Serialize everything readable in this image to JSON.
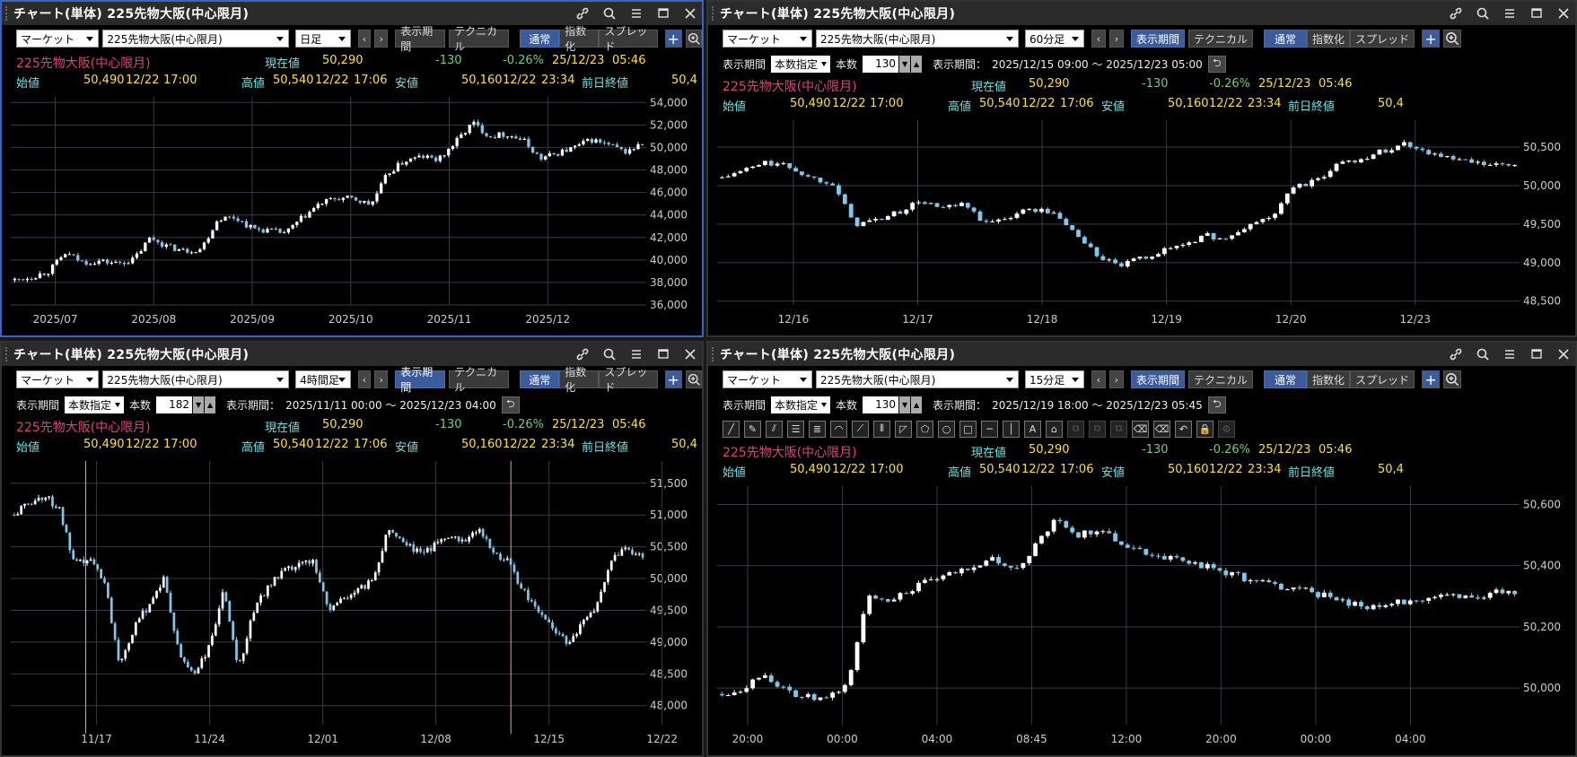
{
  "panels": [
    {
      "title": "チャート(単体) 225先物大阪(中心限月)",
      "market": "マーケット",
      "symbol": "225先物大阪(中心限月)",
      "interval": "日足",
      "btn_period": "表示期間",
      "btn_technical": "テクニカル",
      "btn_normal": "通常",
      "btn_index": "指数化",
      "btn_spread": "スプレッド",
      "quote": {
        "name": "225先物大阪(中心限月)",
        "now_label": "現在値",
        "now": "50,290",
        "change": "-130",
        "pct": "-0.26%",
        "date": "25/12/23",
        "time": "05:46",
        "open_label": "始値",
        "open": "50,490",
        "open_date": "12/22",
        "open_time": "17:00",
        "high_label": "高値",
        "high": "50,540",
        "high_date": "12/22",
        "high_time": "17:06",
        "low_label": "安値",
        "low": "50,160",
        "low_date": "12/22",
        "low_time": "23:34",
        "prev_label": "前日終値",
        "prev": "50,4"
      },
      "chart_data": {
        "type": "candlestick",
        "y_ticks": [
          "54,000",
          "52,000",
          "50,000",
          "48,000",
          "46,000",
          "44,000",
          "42,000",
          "40,000",
          "38,000",
          "36,000"
        ],
        "x_ticks": [
          "2025/07",
          "2025/08",
          "2025/09",
          "2025/10",
          "2025/11",
          "2025/12"
        ],
        "ylim": [
          36000,
          54500
        ],
        "path": [
          38200,
          38500,
          39000,
          40600,
          39800,
          39900,
          39700,
          40000,
          42000,
          41200,
          40800,
          41000,
          43700,
          43800,
          42800,
          42600,
          42400,
          43800,
          45000,
          45500,
          45400,
          44900,
          47700,
          48800,
          49200,
          48900,
          50500,
          52200,
          51000,
          51200,
          50600,
          49000,
          49500,
          50000,
          50700,
          50200,
          49600,
          50300
        ]
      }
    },
    {
      "title": "チャート(単体) 225先物大阪(中心限月)",
      "market": "マーケット",
      "symbol": "225先物大阪(中心限月)",
      "interval": "60分足",
      "btn_period": "表示期間",
      "btn_technical": "テクニカル",
      "btn_normal": "通常",
      "btn_index": "指数化",
      "btn_spread": "スプレッド",
      "period": {
        "label": "表示期間",
        "mode": "本数指定",
        "count_label": "本数",
        "count": "130",
        "range_label": "表示期間：",
        "range": "2025/12/15 09:00 ～ 2025/12/23 05:00"
      },
      "quote": {
        "name": "225先物大阪(中心限月)",
        "now_label": "現在値",
        "now": "50,290",
        "change": "-130",
        "pct": "-0.26%",
        "date": "25/12/23",
        "time": "05:46",
        "open_label": "始値",
        "open": "50,490",
        "open_date": "12/22",
        "open_time": "17:00",
        "high_label": "高値",
        "high": "50,540",
        "high_date": "12/22",
        "high_time": "17:06",
        "low_label": "安値",
        "low": "50,160",
        "low_date": "12/22",
        "low_time": "23:34",
        "prev_label": "前日終値",
        "prev": "50,4"
      },
      "chart_data": {
        "type": "candlestick",
        "y_ticks": [
          "50,500",
          "50,000",
          "49,500",
          "49,000",
          "48,500"
        ],
        "x_ticks": [
          "12/16",
          "12/17",
          "12/18",
          "12/19",
          "12/20",
          "12/23"
        ],
        "ylim": [
          48450,
          50850
        ],
        "path": [
          50100,
          50200,
          50300,
          50250,
          50100,
          50050,
          49500,
          49550,
          49650,
          49800,
          49700,
          49750,
          49500,
          49600,
          49700,
          49650,
          49400,
          49100,
          48950,
          49050,
          49150,
          49250,
          49350,
          49300,
          49500,
          49600,
          50000,
          50050,
          50300,
          50350,
          50450,
          50550,
          50450,
          50350,
          50300,
          50250,
          50280
        ]
      }
    },
    {
      "title": "チャート(単体) 225先物大阪(中心限月)",
      "market": "マーケット",
      "symbol": "225先物大阪(中心限月)",
      "interval": "4時間足",
      "btn_period": "表示期間",
      "btn_technical": "テクニカル",
      "btn_normal": "通常",
      "btn_index": "指数化",
      "btn_spread": "スプレッド",
      "period": {
        "label": "表示期間",
        "mode": "本数指定",
        "count_label": "本数",
        "count": "182",
        "range_label": "表示期間：",
        "range": "2025/11/11 00:00 ～ 2025/12/23 04:00"
      },
      "quote": {
        "name": "225先物大阪(中心限月)",
        "now_label": "現在値",
        "now": "50,290",
        "change": "-130",
        "pct": "-0.26%",
        "date": "25/12/23",
        "time": "05:46",
        "open_label": "始値",
        "open": "50,490",
        "open_date": "12/22",
        "open_time": "17:00",
        "high_label": "高値",
        "high": "50,540",
        "high_date": "12/22",
        "high_time": "17:06",
        "low_label": "安値",
        "low": "50,160",
        "low_date": "12/22",
        "low_time": "23:34",
        "prev_label": "前日終値",
        "prev": "50,4"
      },
      "chart_data": {
        "type": "candlestick",
        "y_ticks": [
          "51,500",
          "51,000",
          "50,500",
          "50,000",
          "49,500",
          "49,000",
          "48,500",
          "48,000"
        ],
        "x_ticks": [
          "11/17",
          "11/24",
          "12/01",
          "12/08",
          "12/15",
          "12/22"
        ],
        "ylim": [
          47700,
          51850
        ],
        "path": [
          51000,
          51200,
          51300,
          51100,
          50200,
          50300,
          50000,
          48700,
          49200,
          49600,
          50000,
          48800,
          48500,
          48900,
          49800,
          48600,
          49500,
          49900,
          50100,
          50200,
          50300,
          49500,
          49700,
          49800,
          50000,
          50800,
          50600,
          50400,
          50500,
          50700,
          50600,
          50800,
          50400,
          50300,
          49800,
          49500,
          49200,
          49000,
          49300,
          49600,
          50300,
          50500,
          50300
        ]
      }
    },
    {
      "title": "チャート(単体) 225先物大阪(中心限月)",
      "market": "マーケット",
      "symbol": "225先物大阪(中心限月)",
      "interval": "15分足",
      "btn_period": "表示期間",
      "btn_technical": "テクニカル",
      "btn_normal": "通常",
      "btn_index": "指数化",
      "btn_spread": "スプレッド",
      "period": {
        "label": "表示期間",
        "mode": "本数指定",
        "count_label": "本数",
        "count": "130",
        "range_label": "表示期間：",
        "range": "2025/12/19 18:00 ～ 2025/12/23 05:45"
      },
      "quote": {
        "name": "225先物大阪(中心限月)",
        "now_label": "現在値",
        "now": "50,290",
        "change": "-130",
        "pct": "-0.26%",
        "date": "25/12/23",
        "time": "05:46",
        "open_label": "始値",
        "open": "50,490",
        "open_date": "12/22",
        "open_time": "17:00",
        "high_label": "高値",
        "high": "50,540",
        "high_date": "12/22",
        "high_time": "17:06",
        "low_label": "安値",
        "low": "50,160",
        "low_date": "12/22",
        "low_time": "23:34",
        "prev_label": "前日終値",
        "prev": "50,4"
      },
      "chart_data": {
        "type": "candlestick",
        "y_ticks": [
          "50,600",
          "50,400",
          "50,200",
          "50,000"
        ],
        "x_ticks": [
          "20:00",
          "00:00",
          "04:00",
          "08:45",
          "12:00",
          "20:00",
          "00:00",
          "04:00"
        ],
        "ylim": [
          49880,
          50660
        ],
        "path": [
          49980,
          50000,
          50050,
          49990,
          49970,
          49960,
          50010,
          50300,
          50290,
          50320,
          50350,
          50370,
          50400,
          50420,
          50380,
          50460,
          50550,
          50500,
          50520,
          50480,
          50450,
          50430,
          50420,
          50400,
          50380,
          50360,
          50340,
          50330,
          50320,
          50300,
          50280,
          50260,
          50270,
          50290,
          50300,
          50300,
          50290,
          50320,
          50300
        ]
      }
    }
  ],
  "draw_tools": [
    "line",
    "pencil",
    "parallel",
    "lines3",
    "lines5",
    "arc",
    "fan",
    "vlines",
    "wedge",
    "pentagon",
    "circle",
    "rect",
    "hline",
    "vline",
    "text",
    "icon",
    "copy1",
    "copy2",
    "copy3",
    "eraser1",
    "eraser2",
    "undo",
    "lock",
    "gear"
  ]
}
